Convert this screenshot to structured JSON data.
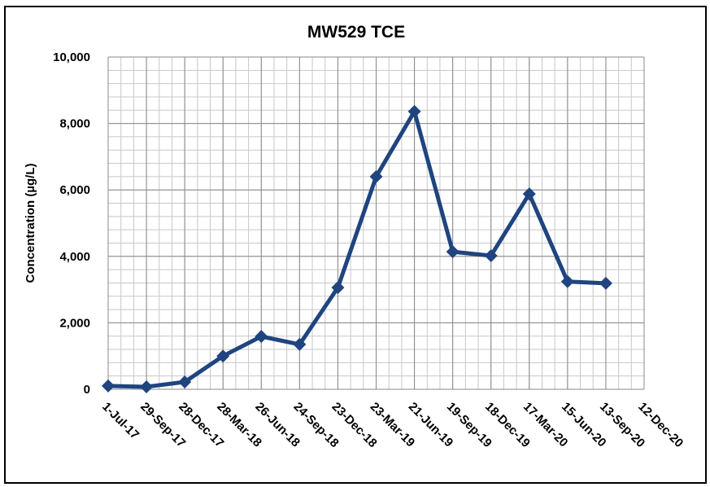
{
  "chart_data": {
    "type": "line",
    "title": "MW529 TCE",
    "y_label": "Concentration (µg/L)",
    "categories": [
      "1-Jul-17",
      "29-Sep-17",
      "28-Dec-17",
      "28-Mar-18",
      "26-Jun-18",
      "24-Sep-18",
      "23-Dec-18",
      "23-Mar-19",
      "21-Jun-19",
      "19-Sep-19",
      "18-Dec-19",
      "17-Mar-20",
      "15-Jun-20",
      "13-Sep-20",
      "12-Dec-20"
    ],
    "series": [
      {
        "name": "TCE",
        "color": "#1f4480",
        "values": [
          100,
          75,
          220,
          1000,
          1590,
          1350,
          3060,
          6400,
          8360,
          4140,
          4020,
          5880,
          3240,
          3190,
          null
        ]
      }
    ],
    "ylim": [
      0,
      10000
    ],
    "yticks": [
      0,
      {
        "value": 2000,
        "label": "2,000"
      },
      {
        "value": 4000,
        "label": "4,000"
      },
      {
        "value": 6000,
        "label": "6,000"
      },
      {
        "value": 8000,
        "label": "8,000"
      },
      {
        "value": 10000,
        "label": "10,000"
      }
    ],
    "grid": true
  }
}
